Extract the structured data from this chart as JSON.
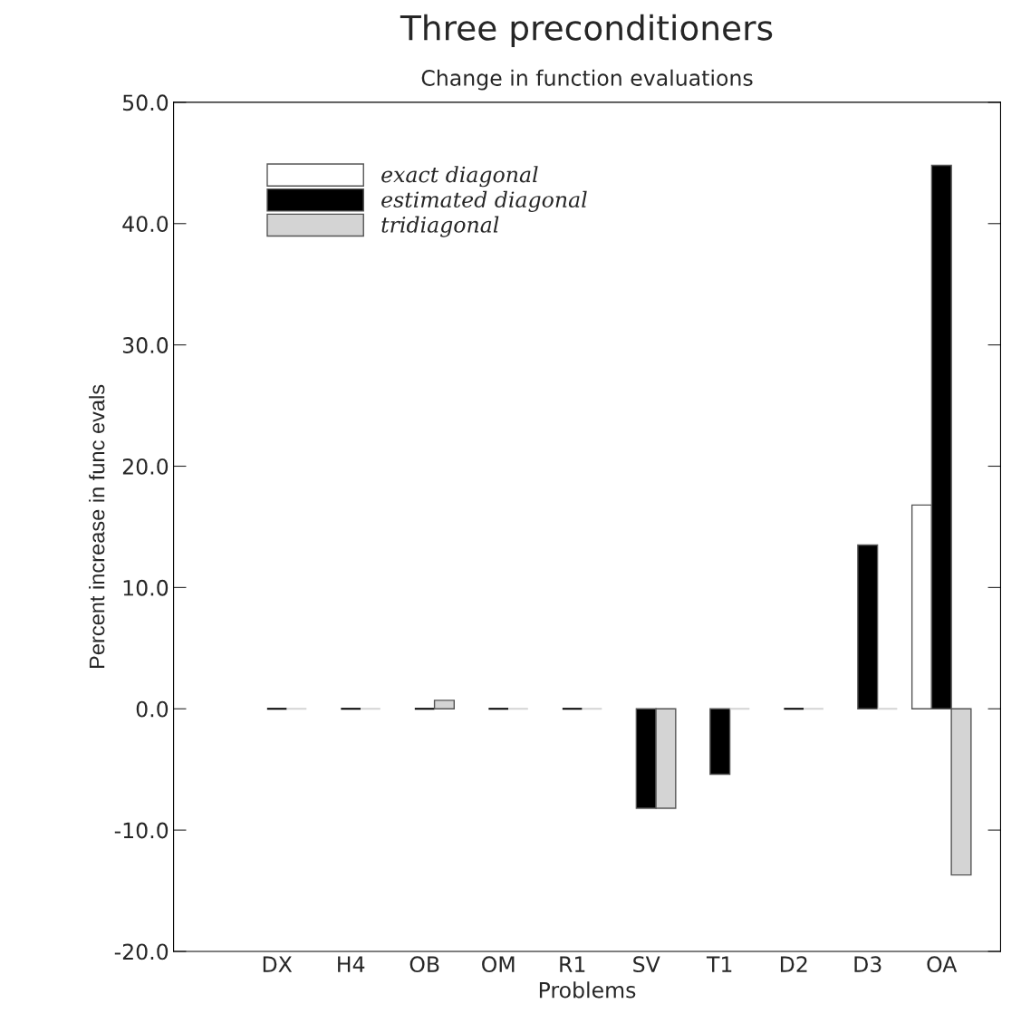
{
  "chart_data": {
    "type": "bar",
    "title": "Three preconditioners",
    "subtitle": "Change in function evaluations",
    "xlabel": "Problems",
    "ylabel": "Percent increase in func evals",
    "categories": [
      "DX",
      "H4",
      "OB",
      "OM",
      "R1",
      "SV",
      "T1",
      "D2",
      "D3",
      "OA"
    ],
    "series": [
      {
        "name": "exact diagonal",
        "color": "#ffffff",
        "values": [
          0,
          0,
          0,
          0,
          0,
          0,
          0,
          0,
          0,
          16.8
        ]
      },
      {
        "name": "estimated diagonal",
        "color": "#000000",
        "values": [
          0,
          0,
          0,
          0,
          0,
          -8.2,
          -5.4,
          0,
          13.5,
          44.8
        ]
      },
      {
        "name": "tridiagonal",
        "color": "#d4d4d4",
        "values": [
          0,
          0,
          0.7,
          0,
          0,
          -8.2,
          0,
          0,
          0,
          -13.7
        ]
      }
    ],
    "ylim": [
      -20,
      50
    ],
    "yticks": [
      {
        "value": -20,
        "label": "-20.0"
      },
      {
        "value": -10,
        "label": "-10.0"
      },
      {
        "value": 0,
        "label": "0.0"
      },
      {
        "value": 10,
        "label": "10.0"
      },
      {
        "value": 20,
        "label": "20.0"
      },
      {
        "value": 30,
        "label": "30.0"
      },
      {
        "value": 40,
        "label": "40.0"
      },
      {
        "value": 50,
        "label": "50.0"
      }
    ],
    "legend": "top left",
    "grid": false
  }
}
